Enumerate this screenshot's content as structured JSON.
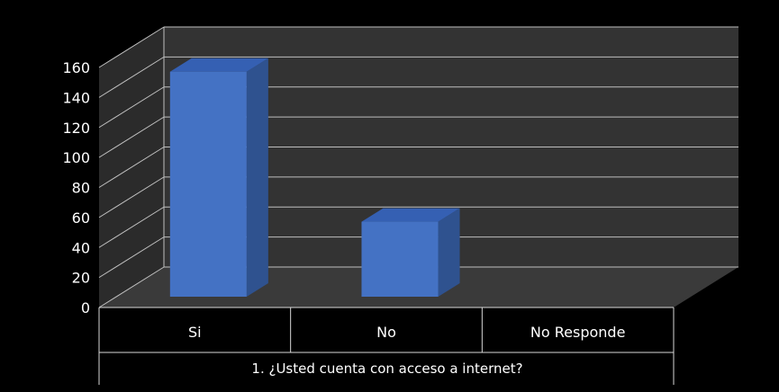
{
  "chart_data": {
    "type": "bar",
    "categories": [
      "Si",
      "No",
      "No Responde"
    ],
    "values": [
      150,
      50,
      0
    ],
    "group_label": "1. ¿Usted cuenta con acceso a internet?",
    "title": "",
    "xlabel": "",
    "ylabel": "",
    "ylim": [
      0,
      160
    ],
    "yticks": [
      "0",
      "20",
      "40",
      "60",
      "80",
      "100",
      "120",
      "140",
      "160"
    ],
    "grid": true,
    "legend": "none",
    "colors": {
      "background": "#000000",
      "wall": "#333333",
      "gridline": "#bfbfbf",
      "bar_front": "#4472c4",
      "bar_side": "#2f528f",
      "bar_top": "#3560b3"
    }
  }
}
